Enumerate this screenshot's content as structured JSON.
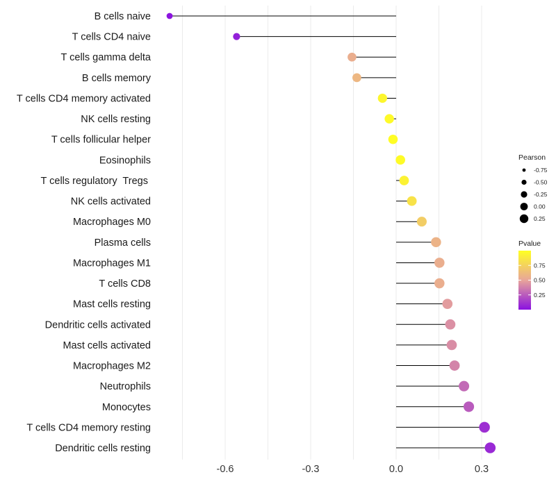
{
  "chart_data": {
    "type": "lollipop",
    "title": "",
    "xlabel": "",
    "ylabel": "",
    "xlim": [
      -0.8,
      0.36
    ],
    "x_ticks": [
      -0.6,
      -0.3,
      0.0,
      0.3
    ],
    "x_tick_labels": [
      "-0.6",
      "-0.3",
      "0.0",
      "0.3"
    ],
    "grid": true,
    "baseline": 0.0,
    "categories": [
      "B cells naive",
      "T cells CD4 naive",
      "T cells gamma delta",
      "B cells memory",
      "T cells CD4 memory activated",
      "NK cells resting",
      "T cells follicular helper",
      "Eosinophils",
      "T cells regulatory  Tregs ",
      "NK cells activated",
      "Macrophages M0",
      "Plasma cells",
      "Macrophages M1",
      "T cells CD8",
      "Mast cells resting",
      "Dendritic cells activated",
      "Mast cells activated",
      "Macrophages M2",
      "Neutrophils",
      "Monocytes",
      "T cells CD4 memory resting",
      "Dendritic cells resting"
    ],
    "series": [
      {
        "name": "Pearson",
        "values": [
          -0.795,
          -0.56,
          -0.155,
          -0.138,
          -0.048,
          -0.024,
          -0.011,
          0.015,
          0.028,
          0.055,
          0.09,
          0.14,
          0.152,
          0.152,
          0.18,
          0.19,
          0.195,
          0.205,
          0.238,
          0.255,
          0.31,
          0.33
        ]
      },
      {
        "name": "Pvalue",
        "values": [
          0.01,
          0.05,
          0.55,
          0.6,
          0.95,
          0.97,
          0.99,
          0.98,
          0.93,
          0.84,
          0.72,
          0.58,
          0.55,
          0.55,
          0.47,
          0.43,
          0.42,
          0.39,
          0.3,
          0.25,
          0.1,
          0.08
        ]
      }
    ],
    "legends": {
      "size": {
        "title": "Pearson",
        "labels": [
          "-0.75",
          "-0.50",
          "-0.25",
          "0.00",
          "0.25"
        ],
        "values": [
          -0.75,
          -0.5,
          -0.25,
          0.0,
          0.25
        ],
        "position": "right"
      },
      "color": {
        "title": "Pvalue",
        "labels": [
          "0.75",
          "0.50",
          "0.25"
        ],
        "values": [
          0.75,
          0.5,
          0.25
        ],
        "range": [
          0.0,
          1.0
        ],
        "position": "right"
      }
    },
    "colors": {
      "low": "#8a11e0",
      "mid": "#e8a59a",
      "high": "#ffff22",
      "stem": "#000000",
      "grid": "#ebebeb"
    }
  }
}
